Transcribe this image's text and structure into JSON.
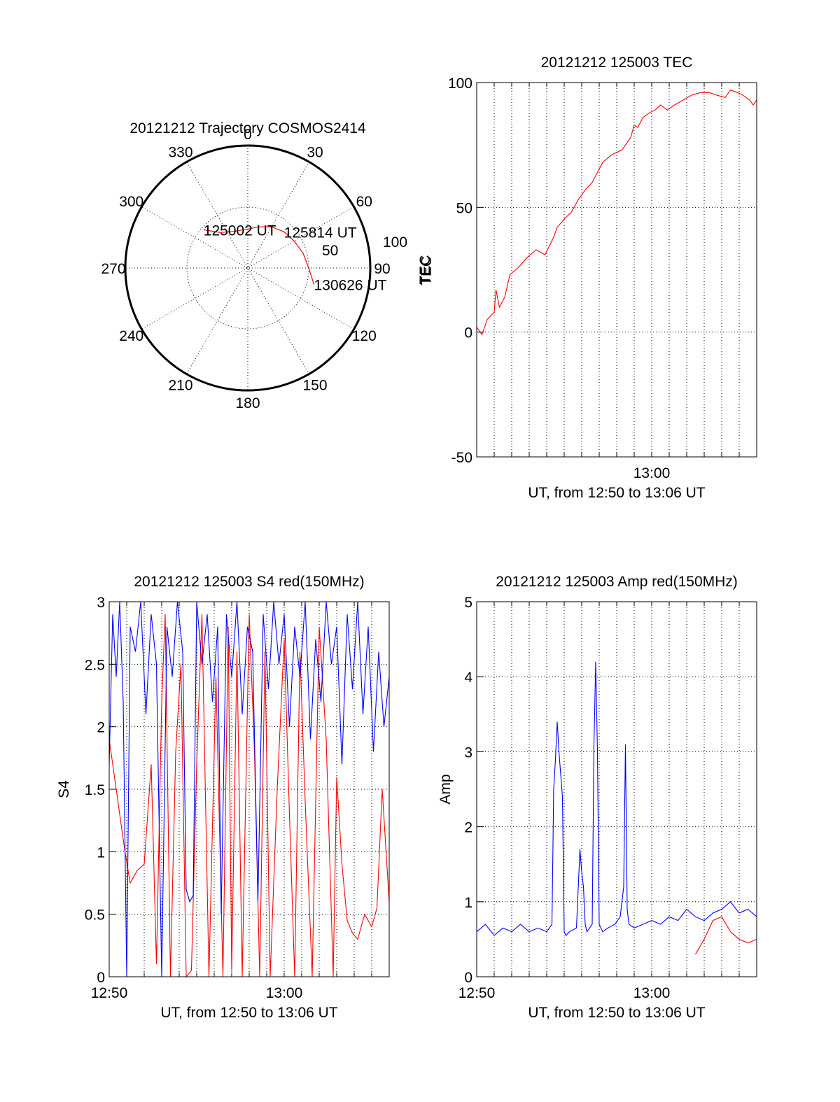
{
  "chart_data": [
    {
      "type": "polar",
      "title": "20121212 Trajectory COSMOS2414",
      "azimuth_labels": [
        "0",
        "30",
        "60",
        "90",
        "120",
        "150",
        "180",
        "210",
        "240",
        "270",
        "300",
        "330"
      ],
      "radial_labels": [
        "50",
        "100"
      ],
      "radial_axis_label": "TEC",
      "track": [
        [
          310.8,
          48
        ],
        [
          322,
          37
        ],
        [
          340,
          32
        ],
        [
          0,
          32
        ],
        [
          15,
          35
        ],
        [
          30,
          39
        ],
        [
          45,
          42
        ],
        [
          60,
          44
        ],
        [
          75,
          47
        ],
        [
          90,
          50
        ],
        [
          104,
          56
        ]
      ],
      "annotations": [
        {
          "text": "125002 UT",
          "az": 310.8,
          "r": 48
        },
        {
          "text": "125814 UT",
          "az": 45,
          "r": 42
        },
        {
          "text": "130626 UT",
          "az": 104,
          "r": 56
        }
      ],
      "series_color": "#ff0000"
    },
    {
      "type": "line",
      "title": "20121212 125003 TEC",
      "xlabel": "UT, from 12:50 to 13:06 UT",
      "ylabel": "TEC",
      "xlim": [
        0,
        16
      ],
      "ylim": [
        -50,
        100
      ],
      "yticks": [
        "100",
        "50",
        "0",
        "-50"
      ],
      "xtick_labels": [
        {
          "x": 10,
          "label": "13:00"
        }
      ],
      "grid": true,
      "series": [
        {
          "color": "#ff0000",
          "x": [
            0,
            0.3,
            0.6,
            1.0,
            1.1,
            1.3,
            1.6,
            1.9,
            2.4,
            2.9,
            3.4,
            3.9,
            4.4,
            4.6,
            5.1,
            5.4,
            5.8,
            6.2,
            6.6,
            6.9,
            7.2,
            7.7,
            8.3,
            8.8,
            9.0,
            9.2,
            9.5,
            9.9,
            10.2,
            10.5,
            10.9,
            11.3,
            11.8,
            12.3,
            12.8,
            13.3,
            13.7,
            14.2,
            14.5,
            14.9,
            15.2,
            15.6,
            15.8,
            16.0
          ],
          "y": [
            2,
            -1,
            5,
            8,
            17,
            10,
            14,
            23,
            26,
            30,
            33,
            31,
            38,
            42,
            46,
            48,
            53,
            57,
            60,
            64,
            68,
            71,
            73,
            78,
            83,
            82,
            86,
            88,
            89,
            91,
            89,
            91,
            93,
            95,
            96,
            96,
            95,
            94,
            97,
            96,
            95,
            93,
            91,
            93
          ]
        }
      ]
    },
    {
      "type": "line",
      "title": "20121212 125003 S4 red(150MHz)",
      "xlabel": "UT, from 12:50 to 13:06 UT",
      "ylabel": "S4",
      "xlim": [
        0,
        16
      ],
      "ylim": [
        0,
        3
      ],
      "yticks": [
        "0",
        "0.5",
        "1",
        "1.5",
        "2",
        "2.5",
        "3"
      ],
      "xtick_labels": [
        {
          "x": 0,
          "label": "12:50"
        },
        {
          "x": 10,
          "label": "13:00"
        }
      ],
      "grid": true,
      "series": [
        {
          "color": "#ff0000",
          "x": [
            0.0,
            0.4,
            0.6,
            0.9,
            1.2,
            1.6,
            2.0,
            2.4,
            2.7,
            3.0,
            3.2,
            3.5,
            3.8,
            4.1,
            4.4,
            4.7,
            5.0,
            5.3,
            5.7,
            6.1,
            6.5,
            6.8,
            7.0,
            7.3,
            7.6,
            8.0,
            8.3,
            8.6,
            8.9,
            9.2,
            9.6,
            10.0,
            10.3,
            10.6,
            10.9,
            11.2,
            11.6,
            12.0,
            12.4,
            12.8,
            13.0,
            13.3,
            13.6,
            13.9,
            14.2,
            14.6,
            15.0,
            15.3,
            15.6,
            16.0
          ],
          "y": [
            1.9,
            1.5,
            1.3,
            1.0,
            0.75,
            0.85,
            0.9,
            1.7,
            0.1,
            2.2,
            2.9,
            0.0,
            1.8,
            2.5,
            0.0,
            0.05,
            1.7,
            2.9,
            0.0,
            2.4,
            0.0,
            2.8,
            0.05,
            2.6,
            0.0,
            2.9,
            1.8,
            0.0,
            2.6,
            0.0,
            1.5,
            2.7,
            1.3,
            0.0,
            2.6,
            1.4,
            0.0,
            2.8,
            1.9,
            0.0,
            1.6,
            0.9,
            0.45,
            0.35,
            0.3,
            0.5,
            0.4,
            0.55,
            1.5,
            0.6
          ]
        },
        {
          "color": "#0000ff",
          "x": [
            0.0,
            0.2,
            0.4,
            0.6,
            0.8,
            1.0,
            1.2,
            1.5,
            1.8,
            2.1,
            2.4,
            2.7,
            3.0,
            3.3,
            3.6,
            3.9,
            4.2,
            4.4,
            4.6,
            4.8,
            5.0,
            5.3,
            5.6,
            5.9,
            6.2,
            6.4,
            6.7,
            7.0,
            7.3,
            7.6,
            7.9,
            8.2,
            8.5,
            8.8,
            9.1,
            9.4,
            9.7,
            10.0,
            10.3,
            10.6,
            10.9,
            11.2,
            11.5,
            11.8,
            12.1,
            12.4,
            12.7,
            13.0,
            13.3,
            13.6,
            13.9,
            14.2,
            14.5,
            14.8,
            15.1,
            15.4,
            15.7,
            16.0
          ],
          "y": [
            1.7,
            2.9,
            2.4,
            3.0,
            2.2,
            0.0,
            2.8,
            2.6,
            3.0,
            2.1,
            2.9,
            2.5,
            0.0,
            2.8,
            2.4,
            3.0,
            2.6,
            0.7,
            0.6,
            0.65,
            3.0,
            2.5,
            2.9,
            2.2,
            2.8,
            0.5,
            2.9,
            2.4,
            3.0,
            2.1,
            2.8,
            2.6,
            0.6,
            2.9,
            2.3,
            3.0,
            2.5,
            2.9,
            2.0,
            2.8,
            2.4,
            3.0,
            1.9,
            2.7,
            2.2,
            3.0,
            2.5,
            2.8,
            1.7,
            2.9,
            2.3,
            3.0,
            2.1,
            2.8,
            1.8,
            2.6,
            2.0,
            2.4
          ]
        }
      ]
    },
    {
      "type": "line",
      "title": "20121212 125003 Amp red(150MHz)",
      "xlabel": "UT, from 12:50 to 13:06 UT",
      "ylabel": "Amp",
      "xlim": [
        0,
        16
      ],
      "ylim": [
        0,
        5
      ],
      "yticks": [
        "0",
        "1",
        "2",
        "3",
        "4",
        "5"
      ],
      "xtick_labels": [
        {
          "x": 0,
          "label": "12:50"
        },
        {
          "x": 10,
          "label": "13:00"
        }
      ],
      "grid": true,
      "series": [
        {
          "color": "#0000ff",
          "x": [
            0.0,
            0.5,
            1.0,
            1.5,
            2.0,
            2.5,
            3.0,
            3.5,
            4.0,
            4.3,
            4.4,
            4.5,
            4.6,
            4.7,
            4.8,
            4.9,
            5.0,
            5.1,
            5.3,
            5.7,
            5.9,
            6.0,
            6.1,
            6.2,
            6.3,
            6.6,
            6.7,
            6.8,
            6.9,
            7.0,
            7.2,
            7.5,
            7.9,
            8.2,
            8.4,
            8.5,
            8.6,
            8.7,
            9.0,
            9.5,
            10.0,
            10.5,
            11.0,
            11.5,
            12.0,
            12.5,
            13.0,
            13.5,
            14.0,
            14.5,
            15.0,
            15.5,
            16.0
          ],
          "y": [
            0.6,
            0.7,
            0.55,
            0.65,
            0.6,
            0.7,
            0.6,
            0.65,
            0.6,
            0.7,
            2.5,
            2.9,
            3.4,
            3.0,
            2.7,
            2.4,
            0.6,
            0.55,
            0.6,
            0.65,
            1.7,
            1.4,
            1.2,
            0.7,
            0.6,
            0.7,
            3.1,
            4.2,
            3.0,
            0.7,
            0.6,
            0.65,
            0.7,
            0.8,
            1.2,
            3.1,
            0.9,
            0.7,
            0.65,
            0.7,
            0.75,
            0.7,
            0.8,
            0.75,
            0.9,
            0.8,
            0.75,
            0.85,
            0.9,
            1.0,
            0.85,
            0.9,
            0.8
          ]
        },
        {
          "color": "#ff0000",
          "x": [
            12.5,
            13.0,
            13.5,
            14.0,
            14.5,
            15.0,
            15.5,
            16.0
          ],
          "y": [
            0.3,
            0.5,
            0.75,
            0.8,
            0.6,
            0.5,
            0.45,
            0.5
          ]
        }
      ]
    }
  ]
}
